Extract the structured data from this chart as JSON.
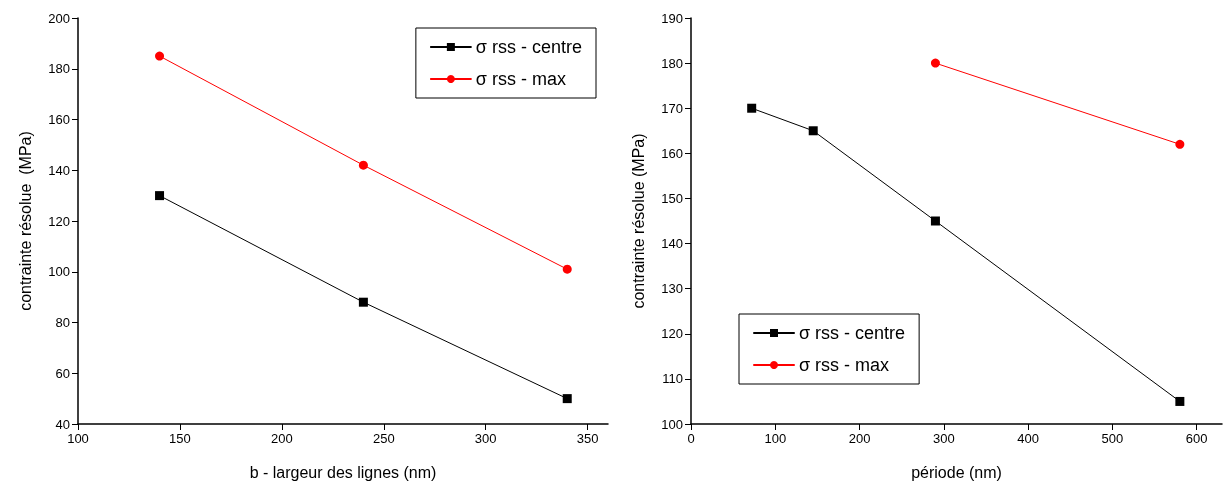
{
  "chart_data": [
    {
      "type": "line",
      "xlabel": "b - largeur des lignes (nm)",
      "ylabel": "contrainte résolue  (MPa)",
      "x": [
        140,
        240,
        340
      ],
      "series": [
        {
          "name": "σ rss - centre",
          "color": "#000000",
          "marker": "square",
          "values": [
            130,
            88,
            50
          ]
        },
        {
          "name": "σ rss - max",
          "color": "#ff0000",
          "marker": "circle",
          "values": [
            185,
            142,
            101
          ]
        }
      ],
      "xlim": [
        100,
        360
      ],
      "xticks": [
        100,
        150,
        200,
        250,
        300,
        350
      ],
      "ylim": [
        40,
        200
      ],
      "yticks": [
        40,
        60,
        80,
        100,
        120,
        140,
        160,
        180,
        200
      ],
      "grid": false,
      "legend": "top right",
      "line_style": "solid"
    },
    {
      "type": "line",
      "xlabel": "période (nm)",
      "ylabel": "contrainte résolue (MPa)",
      "series": [
        {
          "name": "σ rss - centre",
          "color": "#000000",
          "marker": "square",
          "x": [
            72,
            145,
            290,
            580
          ],
          "values": [
            170,
            165,
            145,
            105
          ]
        },
        {
          "name": "σ rss - max",
          "color": "#ff0000",
          "marker": "circle",
          "x": [
            290,
            580
          ],
          "values": [
            180,
            162
          ]
        }
      ],
      "xlim": [
        0,
        630
      ],
      "xticks": [
        0,
        100,
        200,
        300,
        400,
        500,
        600
      ],
      "ylim": [
        100,
        190
      ],
      "yticks": [
        100,
        110,
        120,
        130,
        140,
        150,
        160,
        170,
        180,
        190
      ],
      "grid": false,
      "legend": "bottom left",
      "line_style": "solid"
    }
  ]
}
